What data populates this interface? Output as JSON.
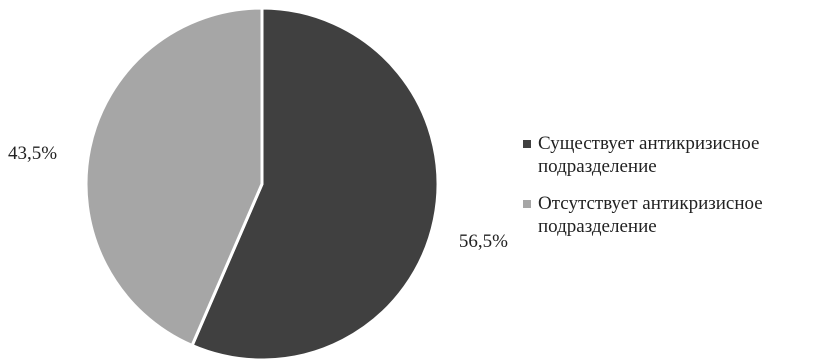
{
  "chart_data": {
    "type": "pie",
    "title": "",
    "start_angle_deg": 0,
    "direction": "clockwise",
    "slices": [
      {
        "label": "Существует антикризисное\nподразделение",
        "value": 56.5,
        "display": "56,5%",
        "color": "#404040"
      },
      {
        "label": "Отсутствует антикризисное\nподразделение",
        "value": 43.5,
        "display": "43,5%",
        "color": "#a6a6a6"
      }
    ],
    "legend_position": "right"
  }
}
